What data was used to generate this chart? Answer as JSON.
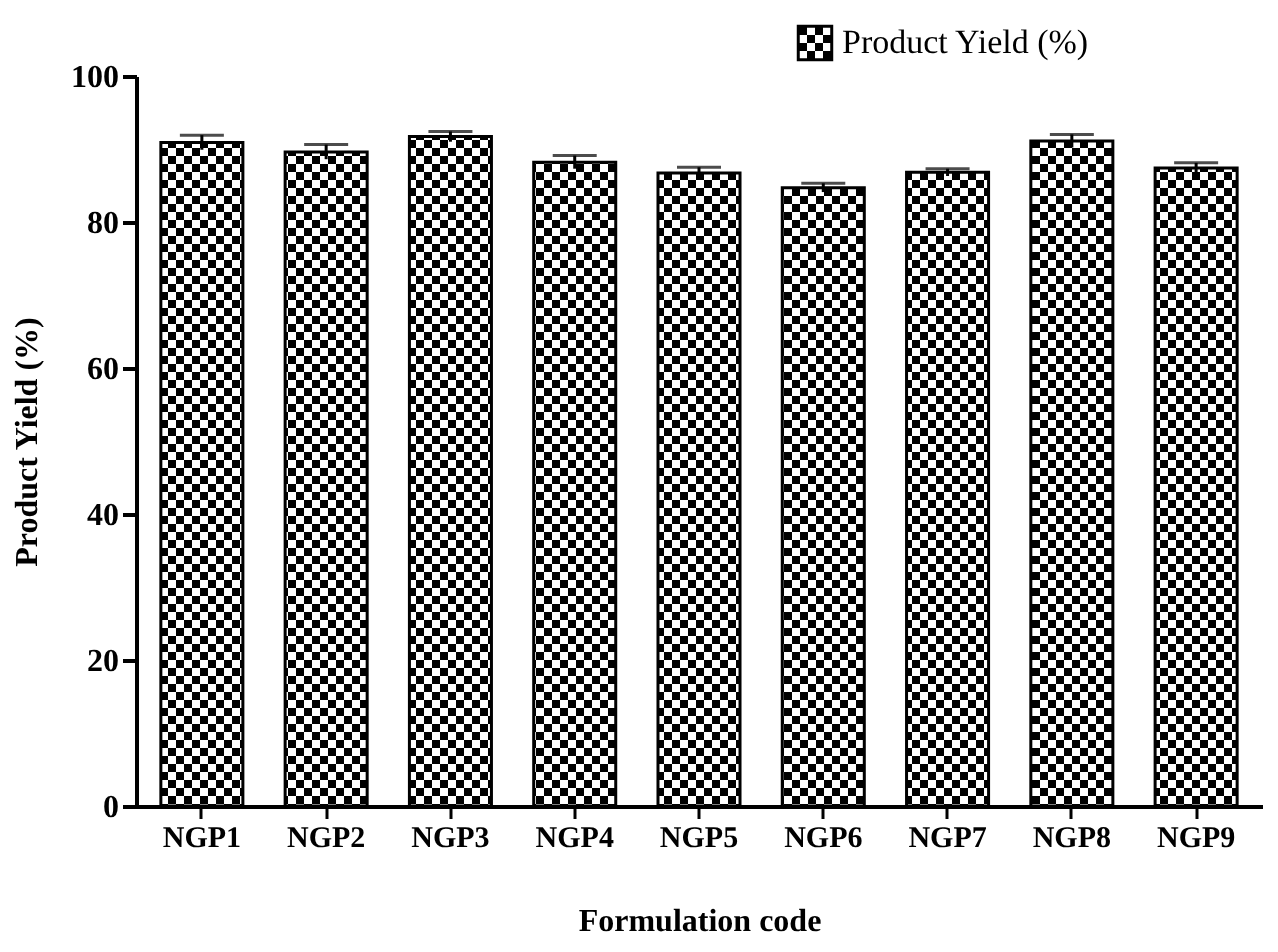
{
  "chart_data": {
    "type": "bar",
    "xlabel": "Formulation code",
    "ylabel": "Product Yield (%)",
    "categories": [
      "NGP1",
      "NGP2",
      "NGP3",
      "NGP4",
      "NGP5",
      "NGP6",
      "NGP7",
      "NGP8",
      "NGP9"
    ],
    "series": [
      {
        "name": "Product Yield (%)",
        "color": "#000000",
        "values": [
          90.9,
          89.6,
          91.7,
          88.2,
          86.7,
          84.7,
          86.8,
          91.1,
          87.4
        ],
        "errors": [
          1,
          1,
          0.7,
          0.9,
          0.8,
          0.6,
          0.5,
          0.9,
          0.7
        ]
      }
    ],
    "ylim": [
      0,
      100
    ],
    "yticks": [
      0,
      20,
      40,
      60,
      80,
      100
    ],
    "grid": false,
    "legend": "top right"
  }
}
